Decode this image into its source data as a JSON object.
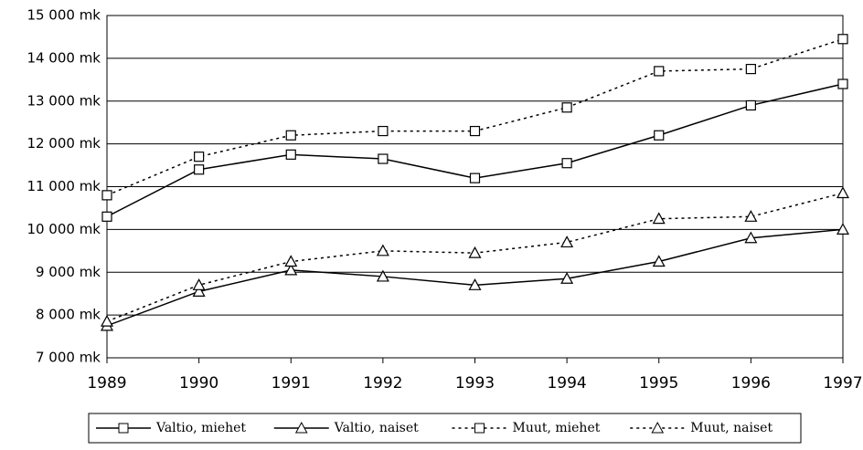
{
  "chart_data": {
    "type": "line",
    "x": [
      1989,
      1990,
      1991,
      1992,
      1993,
      1994,
      1995,
      1996,
      1997
    ],
    "xlim": [
      1989,
      1997
    ],
    "xticks": [
      1989,
      1990,
      1991,
      1992,
      1993,
      1994,
      1995,
      1996,
      1997
    ],
    "ylim": [
      7000,
      15000
    ],
    "yticks": [
      {
        "value": 7000,
        "label": "7 000 mk"
      },
      {
        "value": 8000,
        "label": "8 000 mk"
      },
      {
        "value": 9000,
        "label": "9 000 mk"
      },
      {
        "value": 10000,
        "label": "10 000 mk"
      },
      {
        "value": 11000,
        "label": "11 000 mk"
      },
      {
        "value": 12000,
        "label": "12 000 mk"
      },
      {
        "value": 13000,
        "label": "13 000 mk"
      },
      {
        "value": 14000,
        "label": "14 000 mk"
      },
      {
        "value": 15000,
        "label": "15 000 mk"
      }
    ],
    "grid": true,
    "legend": "bottom",
    "series": [
      {
        "name": "Valtio, miehet",
        "color": "#000000",
        "marker": "square",
        "dashed": false,
        "values": [
          10300,
          11400,
          11750,
          11650,
          11200,
          11550,
          12200,
          12900,
          13400
        ]
      },
      {
        "name": "Valtio, naiset",
        "color": "#000000",
        "marker": "triangle",
        "dashed": false,
        "values": [
          7750,
          8550,
          9050,
          8900,
          8700,
          8850,
          9250,
          9800,
          10000
        ]
      },
      {
        "name": "Muut, miehet",
        "color": "#000000",
        "marker": "square",
        "dashed": true,
        "values": [
          10800,
          11700,
          12200,
          12300,
          12300,
          12850,
          13700,
          13750,
          14450
        ]
      },
      {
        "name": "Muut, naiset",
        "color": "#000000",
        "marker": "triangle",
        "dashed": true,
        "values": [
          7850,
          8700,
          9250,
          9500,
          9450,
          9700,
          10250,
          10300,
          10850
        ]
      }
    ]
  }
}
